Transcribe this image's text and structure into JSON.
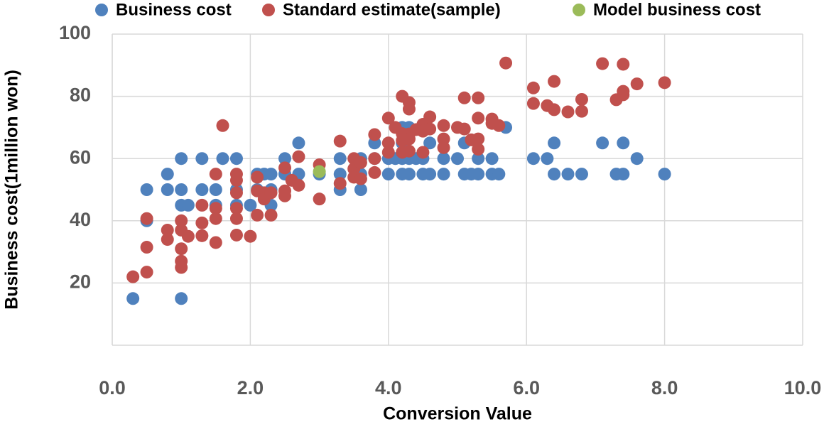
{
  "chart_data": {
    "type": "scatter",
    "x_label": "Conversion Value",
    "y_label": "Business cost(1million won)",
    "xlim": [
      0,
      10
    ],
    "ylim": [
      0,
      100
    ],
    "xticks": [
      {
        "value": 0,
        "label": "0.0"
      },
      {
        "value": 2,
        "label": "2.0"
      },
      {
        "value": 4,
        "label": "4.0"
      },
      {
        "value": 6,
        "label": "6.0"
      },
      {
        "value": 8,
        "label": "8.0"
      },
      {
        "value": 10,
        "label": "10.0"
      }
    ],
    "yticks": [
      20,
      40,
      60,
      80,
      100
    ],
    "grid": true,
    "legend": "top",
    "series": [
      {
        "name": "Business cost",
        "color": "#4f81bd",
        "x": [
          0.3,
          0.5,
          0.5,
          0.8,
          0.8,
          1.0,
          1.0,
          1.0,
          1.1,
          1.0,
          1.3,
          1.3,
          1.5,
          1.5,
          1.6,
          1.8,
          1.8,
          1.8,
          2.0,
          2.1,
          2.1,
          2.2,
          2.3,
          2.3,
          2.3,
          2.5,
          2.5,
          2.7,
          2.7,
          3.0,
          3.3,
          3.3,
          3.3,
          3.6,
          3.6,
          3.6,
          3.8,
          3.8,
          4.0,
          4.0,
          4.1,
          4.2,
          4.2,
          4.2,
          4.2,
          4.3,
          4.3,
          4.3,
          4.4,
          4.5,
          4.5,
          4.6,
          4.6,
          4.8,
          4.8,
          5.0,
          5.1,
          5.1,
          5.2,
          5.3,
          5.3,
          5.5,
          5.5,
          5.6,
          5.7,
          6.1,
          6.3,
          6.4,
          6.4,
          6.6,
          6.8,
          7.1,
          7.3,
          7.4,
          7.4,
          7.6,
          8.0
        ],
        "y": [
          15,
          50,
          40,
          55,
          50,
          60,
          50,
          45,
          45,
          15,
          60,
          50,
          50,
          45,
          60,
          60,
          50,
          45,
          45,
          55,
          50,
          55,
          55,
          50,
          45,
          60,
          55,
          65,
          55,
          55,
          60,
          55,
          50,
          60,
          55,
          50,
          65,
          60,
          60,
          55,
          60,
          70,
          65,
          60,
          55,
          70,
          60,
          55,
          60,
          60,
          55,
          65,
          55,
          60,
          55,
          60,
          65,
          55,
          55,
          60,
          55,
          60,
          55,
          55,
          70,
          60,
          60,
          65,
          55,
          55,
          55,
          65,
          55,
          65,
          55,
          60,
          55
        ]
      },
      {
        "name": "Standard estimate(sample)",
        "color": "#c0504d",
        "x": [
          0.3,
          0.5,
          0.5,
          0.5,
          0.8,
          0.8,
          1.0,
          1.0,
          1.0,
          1.0,
          1.0,
          1.1,
          1.3,
          1.3,
          1.3,
          1.5,
          1.5,
          1.5,
          1.5,
          1.6,
          1.8,
          1.8,
          1.8,
          1.8,
          1.8,
          1.8,
          2.0,
          2.1,
          2.1,
          2.1,
          2.2,
          2.2,
          2.3,
          2.3,
          2.5,
          2.5,
          2.5,
          2.6,
          2.7,
          2.7,
          3.0,
          3.0,
          3.3,
          3.3,
          3.5,
          3.5,
          3.5,
          3.6,
          3.6,
          3.8,
          3.8,
          3.8,
          4.0,
          4.0,
          4.0,
          4.1,
          4.2,
          4.2,
          4.2,
          4.2,
          4.3,
          4.3,
          4.3,
          4.3,
          4.3,
          4.4,
          4.5,
          4.5,
          4.5,
          4.6,
          4.6,
          4.8,
          4.8,
          4.8,
          5.0,
          5.1,
          5.1,
          5.2,
          5.3,
          5.3,
          5.3,
          5.3,
          5.5,
          5.5,
          5.6,
          5.7,
          6.1,
          6.1,
          6.3,
          6.4,
          6.4,
          6.6,
          6.8,
          6.8,
          7.1,
          7.3,
          7.4,
          7.4,
          7.4,
          7.6,
          8.0
        ],
        "y": [
          22,
          40.7,
          31.5,
          23.5,
          37,
          34,
          40,
          37,
          31,
          27,
          25,
          35,
          45,
          39.3,
          35.2,
          55,
          44,
          40.7,
          33,
          70.6,
          55,
          53,
          49,
          44,
          40.7,
          35.4,
          35,
          54,
          49.6,
          41.8,
          49,
          47,
          49,
          41.8,
          57,
          49.6,
          48,
          53,
          60.6,
          51.4,
          58,
          47,
          65.6,
          52,
          60,
          56.7,
          54,
          58.7,
          53.5,
          67.7,
          60,
          55.5,
          73,
          65,
          62,
          70,
          80,
          68,
          65.8,
          62,
          78,
          75.9,
          67.9,
          66.3,
          62.4,
          69.3,
          71,
          68.8,
          62,
          73.4,
          69.5,
          70.6,
          66.3,
          63.5,
          70,
          79.5,
          69.5,
          66,
          79.5,
          73,
          66.3,
          63,
          72.7,
          71.3,
          70.6,
          90.7,
          82.7,
          77.7,
          77,
          84.8,
          75.7,
          75,
          79,
          75.2,
          90.5,
          78.9,
          90.3,
          81.6,
          80.5,
          84,
          84.4
        ]
      },
      {
        "name": "Model business cost",
        "color": "#9bbb59",
        "x": [
          3.0
        ],
        "y": [
          55.8
        ]
      }
    ]
  }
}
